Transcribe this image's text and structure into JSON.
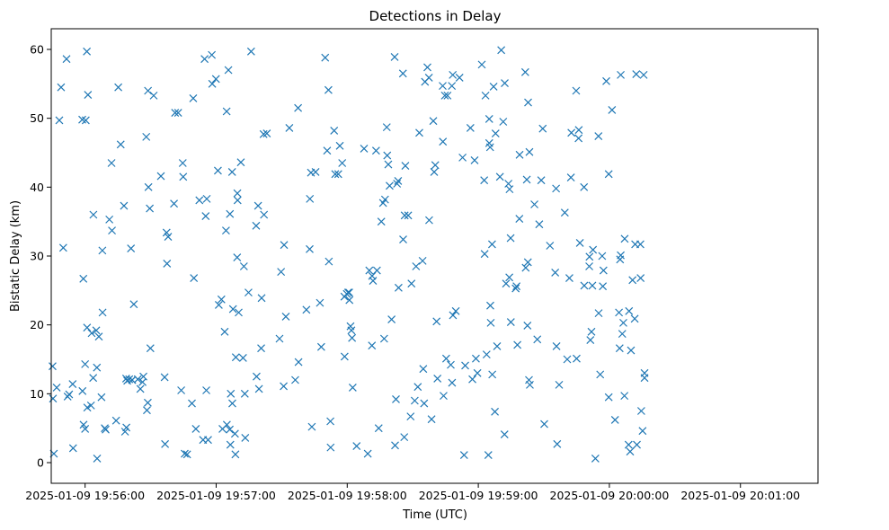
{
  "chart_data": {
    "type": "scatter",
    "title": "Detections in Delay",
    "xlabel": "Time (UTC)",
    "ylabel": "Bistatic Delay (km)",
    "marker": "x",
    "color": "#1f77b4",
    "grid": false,
    "x_ticks": [
      "2025-01-09 19:56:00",
      "2025-01-09 19:57:00",
      "2025-01-09 19:58:00",
      "2025-01-09 19:59:00",
      "2025-01-09 20:00:00",
      "2025-01-09 20:01:00"
    ],
    "y_ticks": [
      0,
      10,
      20,
      30,
      40,
      50,
      60
    ],
    "xlim_seconds": [
      -15.5,
      335.5
    ],
    "ylim": [
      -3,
      63
    ],
    "x_seconds_after": "2025-01-09 19:56:00",
    "points": [
      [
        -14.9,
        14.0
      ],
      [
        -14.7,
        9.3
      ],
      [
        -14.3,
        1.3
      ],
      [
        -13.0,
        10.9
      ],
      [
        -11.8,
        49.7
      ],
      [
        -11.0,
        54.5
      ],
      [
        -10.0,
        31.2
      ],
      [
        -8.5,
        58.6
      ],
      [
        -8.0,
        9.6
      ],
      [
        -7.3,
        9.9
      ],
      [
        -5.7,
        11.4
      ],
      [
        -5.5,
        2.1
      ],
      [
        -1.3,
        49.8
      ],
      [
        -1.2,
        10.4
      ],
      [
        -0.8,
        26.7
      ],
      [
        -0.7,
        5.5
      ],
      [
        0.0,
        14.3
      ],
      [
        0.0,
        4.9
      ],
      [
        0.3,
        49.7
      ],
      [
        0.8,
        59.7
      ],
      [
        0.9,
        19.6
      ],
      [
        1.0,
        8.0
      ],
      [
        1.3,
        53.4
      ],
      [
        2.7,
        8.3
      ],
      [
        3.0,
        18.8
      ],
      [
        3.7,
        12.3
      ],
      [
        3.8,
        36.0
      ],
      [
        5.1,
        19.2
      ],
      [
        5.4,
        13.8
      ],
      [
        5.5,
        0.6
      ],
      [
        6.3,
        18.3
      ],
      [
        7.5,
        9.5
      ],
      [
        7.9,
        30.8
      ],
      [
        8.0,
        21.8
      ],
      [
        9.0,
        5.0
      ],
      [
        9.4,
        4.8
      ],
      [
        11.1,
        35.3
      ],
      [
        12.1,
        43.5
      ],
      [
        12.3,
        33.7
      ],
      [
        14.2,
        6.1
      ],
      [
        15.2,
        54.5
      ],
      [
        16.3,
        46.2
      ],
      [
        17.8,
        37.3
      ],
      [
        18.3,
        4.5
      ],
      [
        18.8,
        12.2
      ],
      [
        18.9,
        5.1
      ],
      [
        19.3,
        11.9
      ],
      [
        20.2,
        12.1
      ],
      [
        21.0,
        31.1
      ],
      [
        21.5,
        12.0
      ],
      [
        21.6,
        12.0
      ],
      [
        22.3,
        23.0
      ],
      [
        24.1,
        12.1
      ],
      [
        25.3,
        10.7
      ],
      [
        26.3,
        11.7
      ],
      [
        26.7,
        12.5
      ],
      [
        28.0,
        47.3
      ],
      [
        28.3,
        7.6
      ],
      [
        28.7,
        8.7
      ],
      [
        28.8,
        54.0
      ],
      [
        29.0,
        40.0
      ],
      [
        29.6,
        36.9
      ],
      [
        29.9,
        16.6
      ],
      [
        31.4,
        53.3
      ],
      [
        34.7,
        41.6
      ],
      [
        36.4,
        12.4
      ],
      [
        36.6,
        2.7
      ],
      [
        37.3,
        33.4
      ],
      [
        37.5,
        28.9
      ],
      [
        38.0,
        32.8
      ],
      [
        40.7,
        37.6
      ],
      [
        41.2,
        50.8
      ],
      [
        42.6,
        50.8
      ],
      [
        44.0,
        10.5
      ],
      [
        44.7,
        43.5
      ],
      [
        44.9,
        41.5
      ],
      [
        45.6,
        1.3
      ],
      [
        46.7,
        1.2
      ],
      [
        48.9,
        8.6
      ],
      [
        49.5,
        52.9
      ],
      [
        49.8,
        26.8
      ],
      [
        50.7,
        4.9
      ],
      [
        52.3,
        38.1
      ],
      [
        54.0,
        3.3
      ],
      [
        54.7,
        58.6
      ],
      [
        55.2,
        35.8
      ],
      [
        55.5,
        10.5
      ],
      [
        55.7,
        38.3
      ],
      [
        56.3,
        3.3
      ],
      [
        58.0,
        59.2
      ],
      [
        58.2,
        55.0
      ],
      [
        59.9,
        55.7
      ],
      [
        60.8,
        42.4
      ],
      [
        61.2,
        22.9
      ],
      [
        62.4,
        23.7
      ],
      [
        62.9,
        4.9
      ],
      [
        63.9,
        19.0
      ],
      [
        64.5,
        33.7
      ],
      [
        64.8,
        51.0
      ],
      [
        64.9,
        5.5
      ],
      [
        65.6,
        57.0
      ],
      [
        66.2,
        4.8
      ],
      [
        66.3,
        36.1
      ],
      [
        66.5,
        2.6
      ],
      [
        66.7,
        10.0
      ],
      [
        67.3,
        42.2
      ],
      [
        67.4,
        8.6
      ],
      [
        67.7,
        22.3
      ],
      [
        68.6,
        4.2
      ],
      [
        68.8,
        1.2
      ],
      [
        69.0,
        15.3
      ],
      [
        69.6,
        29.8
      ],
      [
        69.7,
        39.1
      ],
      [
        69.8,
        38.1
      ],
      [
        70.3,
        21.8
      ],
      [
        71.3,
        43.6
      ],
      [
        72.3,
        15.2
      ],
      [
        72.7,
        28.5
      ],
      [
        73.1,
        10.0
      ],
      [
        73.3,
        3.6
      ],
      [
        74.8,
        24.7
      ],
      [
        76.0,
        59.7
      ],
      [
        78.3,
        34.4
      ],
      [
        78.5,
        12.5
      ],
      [
        79.2,
        37.3
      ],
      [
        79.6,
        10.7
      ],
      [
        80.6,
        16.6
      ],
      [
        80.8,
        23.9
      ],
      [
        81.7,
        47.7
      ],
      [
        81.9,
        36.0
      ],
      [
        83.2,
        47.8
      ],
      [
        89.0,
        18.0
      ],
      [
        89.7,
        27.7
      ],
      [
        90.9,
        11.1
      ],
      [
        91.1,
        31.6
      ],
      [
        91.9,
        21.2
      ],
      [
        93.5,
        48.6
      ],
      [
        96.2,
        12.0
      ],
      [
        97.5,
        51.5
      ],
      [
        97.7,
        14.6
      ],
      [
        101.3,
        22.2
      ],
      [
        102.8,
        31.0
      ],
      [
        102.9,
        38.3
      ],
      [
        103.4,
        42.1
      ],
      [
        103.8,
        5.2
      ],
      [
        105.5,
        42.2
      ],
      [
        107.5,
        23.2
      ],
      [
        108.1,
        16.8
      ],
      [
        109.9,
        58.8
      ],
      [
        110.8,
        45.3
      ],
      [
        111.4,
        54.1
      ],
      [
        111.6,
        29.2
      ],
      [
        112.3,
        6.0
      ],
      [
        112.4,
        2.2
      ],
      [
        114.0,
        48.2
      ],
      [
        114.5,
        41.9
      ],
      [
        115.9,
        41.9
      ],
      [
        116.6,
        46.0
      ],
      [
        117.7,
        43.5
      ],
      [
        118.7,
        24.1
      ],
      [
        118.8,
        15.4
      ],
      [
        119.8,
        24.5
      ],
      [
        120.4,
        24.7
      ],
      [
        120.9,
        24.7
      ],
      [
        121.0,
        23.6
      ],
      [
        121.5,
        19.8
      ],
      [
        121.9,
        19.2
      ],
      [
        122.2,
        18.1
      ],
      [
        122.5,
        10.9
      ],
      [
        124.3,
        2.4
      ],
      [
        127.7,
        45.6
      ],
      [
        129.4,
        1.3
      ],
      [
        130.1,
        27.9
      ],
      [
        131.3,
        17.0
      ],
      [
        131.4,
        27.1
      ],
      [
        131.8,
        26.4
      ],
      [
        133.2,
        45.3
      ],
      [
        133.6,
        27.9
      ],
      [
        134.4,
        5.0
      ],
      [
        135.6,
        35.0
      ],
      [
        136.4,
        37.7
      ],
      [
        136.9,
        18.0
      ],
      [
        137.3,
        38.2
      ],
      [
        138.1,
        48.7
      ],
      [
        138.3,
        44.6
      ],
      [
        138.8,
        43.3
      ],
      [
        139.4,
        40.2
      ],
      [
        140.3,
        20.8
      ],
      [
        141.7,
        58.9
      ],
      [
        141.9,
        2.5
      ],
      [
        142.3,
        9.2
      ],
      [
        142.8,
        40.5
      ],
      [
        143.3,
        40.9
      ],
      [
        143.5,
        25.4
      ],
      [
        145.5,
        56.5
      ],
      [
        145.6,
        32.4
      ],
      [
        146.1,
        3.7
      ],
      [
        146.3,
        35.9
      ],
      [
        146.6,
        43.1
      ],
      [
        147.9,
        35.9
      ],
      [
        149.0,
        6.7
      ],
      [
        149.4,
        26.0
      ],
      [
        150.9,
        9.0
      ],
      [
        151.5,
        28.5
      ],
      [
        152.3,
        11.0
      ],
      [
        153.0,
        47.9
      ],
      [
        154.5,
        29.3
      ],
      [
        154.8,
        13.6
      ],
      [
        155.2,
        8.6
      ],
      [
        155.6,
        55.3
      ],
      [
        156.7,
        57.4
      ],
      [
        157.4,
        55.9
      ],
      [
        157.5,
        35.2
      ],
      [
        158.6,
        6.3
      ],
      [
        159.4,
        49.6
      ],
      [
        159.8,
        42.2
      ],
      [
        160.3,
        43.2
      ],
      [
        160.9,
        20.5
      ],
      [
        161.3,
        12.2
      ],
      [
        163.7,
        54.7
      ],
      [
        163.8,
        46.6
      ],
      [
        164.1,
        9.7
      ],
      [
        164.7,
        53.3
      ],
      [
        165.3,
        15.1
      ],
      [
        165.9,
        53.3
      ],
      [
        167.4,
        14.2
      ],
      [
        167.9,
        54.7
      ],
      [
        168.0,
        11.6
      ],
      [
        168.3,
        56.3
      ],
      [
        168.4,
        21.4
      ],
      [
        169.7,
        22.0
      ],
      [
        171.4,
        55.9
      ],
      [
        172.8,
        44.3
      ],
      [
        173.5,
        1.1
      ],
      [
        174.0,
        14.1
      ],
      [
        176.4,
        48.6
      ],
      [
        177.3,
        12.1
      ],
      [
        178.3,
        43.9
      ],
      [
        178.9,
        15.1
      ],
      [
        179.6,
        13.0
      ],
      [
        181.6,
        57.8
      ],
      [
        182.7,
        41.0
      ],
      [
        182.9,
        30.3
      ],
      [
        183.3,
        53.3
      ],
      [
        183.8,
        15.7
      ],
      [
        184.6,
        1.1
      ],
      [
        185.0,
        49.9
      ],
      [
        185.0,
        46.4
      ],
      [
        185.4,
        45.8
      ],
      [
        185.5,
        22.8
      ],
      [
        185.7,
        20.3
      ],
      [
        186.3,
        31.7
      ],
      [
        186.4,
        12.8
      ],
      [
        187.0,
        54.6
      ],
      [
        187.6,
        7.4
      ],
      [
        187.9,
        47.8
      ],
      [
        188.6,
        16.9
      ],
      [
        189.9,
        41.5
      ],
      [
        190.5,
        59.9
      ],
      [
        191.4,
        49.5
      ],
      [
        192.0,
        4.1
      ],
      [
        192.1,
        55.1
      ],
      [
        192.7,
        26.0
      ],
      [
        193.8,
        40.5
      ],
      [
        194.2,
        26.9
      ],
      [
        194.3,
        39.7
      ],
      [
        194.8,
        32.6
      ],
      [
        194.9,
        20.4
      ],
      [
        197.1,
        25.3
      ],
      [
        197.5,
        25.6
      ],
      [
        197.9,
        17.1
      ],
      [
        198.8,
        35.4
      ],
      [
        198.9,
        44.7
      ],
      [
        201.5,
        56.7
      ],
      [
        201.7,
        28.3
      ],
      [
        202.2,
        41.1
      ],
      [
        202.5,
        19.9
      ],
      [
        202.7,
        29.1
      ],
      [
        202.8,
        52.3
      ],
      [
        203.2,
        12.0
      ],
      [
        203.4,
        45.1
      ],
      [
        203.6,
        11.3
      ],
      [
        205.7,
        37.5
      ],
      [
        207.0,
        17.9
      ],
      [
        207.9,
        34.6
      ],
      [
        208.8,
        41.0
      ],
      [
        209.5,
        48.5
      ],
      [
        210.2,
        5.6
      ],
      [
        212.8,
        31.5
      ],
      [
        215.2,
        27.6
      ],
      [
        215.6,
        39.8
      ],
      [
        215.8,
        16.9
      ],
      [
        216.1,
        2.7
      ],
      [
        217.0,
        11.3
      ],
      [
        219.6,
        36.3
      ],
      [
        220.7,
        15.0
      ],
      [
        221.7,
        26.8
      ],
      [
        222.4,
        41.4
      ],
      [
        222.6,
        47.9
      ],
      [
        224.8,
        54.0
      ],
      [
        225.0,
        15.1
      ],
      [
        225.9,
        47.1
      ],
      [
        226.0,
        48.3
      ],
      [
        226.5,
        31.9
      ],
      [
        228.4,
        40.0
      ],
      [
        228.5,
        25.7
      ],
      [
        230.8,
        28.5
      ],
      [
        230.9,
        29.9
      ],
      [
        231.3,
        17.8
      ],
      [
        231.8,
        19.0
      ],
      [
        232.2,
        25.7
      ],
      [
        232.5,
        30.9
      ],
      [
        233.6,
        0.6
      ],
      [
        235.0,
        47.4
      ],
      [
        235.1,
        21.7
      ],
      [
        235.8,
        12.8
      ],
      [
        236.7,
        30.0
      ],
      [
        237.0,
        25.6
      ],
      [
        237.3,
        27.9
      ],
      [
        238.6,
        55.4
      ],
      [
        239.7,
        41.9
      ],
      [
        239.7,
        9.5
      ],
      [
        241.2,
        51.2
      ],
      [
        242.6,
        6.2
      ],
      [
        244.4,
        21.8
      ],
      [
        244.7,
        16.6
      ],
      [
        244.9,
        29.5
      ],
      [
        245.2,
        56.3
      ],
      [
        245.2,
        30.1
      ],
      [
        245.9,
        18.7
      ],
      [
        246.4,
        20.3
      ],
      [
        246.9,
        9.7
      ],
      [
        247.0,
        32.5
      ],
      [
        248.8,
        2.6
      ],
      [
        249.0,
        22.0
      ],
      [
        249.5,
        1.6
      ],
      [
        249.9,
        16.3
      ],
      [
        250.6,
        26.5
      ],
      [
        251.6,
        20.9
      ],
      [
        251.8,
        31.7
      ],
      [
        252.3,
        56.4
      ],
      [
        252.6,
        2.6
      ],
      [
        254.2,
        31.7
      ],
      [
        254.3,
        26.8
      ],
      [
        254.6,
        7.5
      ],
      [
        255.2,
        4.6
      ],
      [
        255.7,
        56.3
      ],
      [
        256.1,
        13.0
      ],
      [
        256.1,
        12.3
      ]
    ]
  }
}
